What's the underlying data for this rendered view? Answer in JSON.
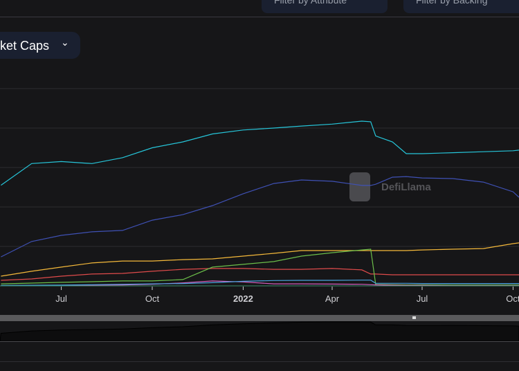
{
  "filters": {
    "attribute_label": "Filter by Attribute",
    "backing_label": "Filter by Backing"
  },
  "chart_selector": {
    "label": "ket Caps",
    "icon": "chevron-down-icon"
  },
  "watermark": {
    "text": "DefiLlama"
  },
  "chart_data": {
    "type": "line",
    "title": "",
    "xlabel": "",
    "ylabel": "",
    "y_units": "billions USD (estimated; y-axis labels not visible)",
    "xlim": [
      "2021-04-30",
      "2022-10-07"
    ],
    "ylim": [
      0,
      100
    ],
    "grid": true,
    "x_ticks": [
      {
        "date": "2021-07-01",
        "label": "Jul"
      },
      {
        "date": "2021-10-01",
        "label": "Oct"
      },
      {
        "date": "2022-01-01",
        "label": "2022"
      },
      {
        "date": "2022-04-01",
        "label": "Apr"
      },
      {
        "date": "2022-07-01",
        "label": "Jul"
      },
      {
        "date": "2022-10-01",
        "label": "Oct"
      }
    ],
    "y_gridlines": [
      20,
      40,
      60,
      80,
      100
    ],
    "x": [
      "2021-05-01",
      "2021-06-01",
      "2021-07-01",
      "2021-08-01",
      "2021-09-01",
      "2021-10-01",
      "2021-11-01",
      "2021-12-01",
      "2022-01-01",
      "2022-02-01",
      "2022-03-01",
      "2022-04-01",
      "2022-05-01",
      "2022-05-10",
      "2022-05-15",
      "2022-06-01",
      "2022-06-15",
      "2022-07-01",
      "2022-08-01",
      "2022-09-01",
      "2022-10-01",
      "2022-10-07"
    ],
    "series": [
      {
        "color": "#26c6da",
        "values": [
          51,
          62,
          63,
          62,
          65,
          70,
          73,
          77,
          79,
          80,
          81,
          82,
          83.5,
          83.2,
          76,
          73,
          67,
          67,
          67.5,
          68,
          68.5,
          68.8
        ]
      },
      {
        "color": "#3f51b5",
        "values": [
          14.7,
          22.5,
          25.6,
          27.4,
          28.1,
          33.3,
          36.1,
          40.7,
          46.7,
          51.9,
          53.7,
          53,
          50.9,
          50.9,
          51.5,
          55.1,
          55.4,
          54.7,
          54.4,
          52.6,
          47.7,
          44.9
        ]
      },
      {
        "color": "#f5b93a",
        "values": [
          4.9,
          7.4,
          9.5,
          11.6,
          12.6,
          12.6,
          13.3,
          13.7,
          15.1,
          16.5,
          17.9,
          17.9,
          17.9,
          17.9,
          17.9,
          17.9,
          17.9,
          18.2,
          18.6,
          18.9,
          21.4,
          21.8
        ]
      },
      {
        "color": "#e04b4b",
        "values": [
          2.8,
          3.5,
          4.9,
          6,
          6.3,
          7.4,
          8.4,
          8.8,
          8.8,
          8.4,
          8.4,
          8.8,
          8.1,
          6,
          6,
          5.6,
          5.6,
          5.6,
          5.6,
          5.6,
          5.6,
          5.6
        ]
      },
      {
        "color": "#6cbf4a",
        "values": [
          1,
          1.4,
          1.8,
          2.1,
          2.5,
          2.5,
          3.2,
          9.5,
          10.9,
          12.3,
          15.1,
          16.8,
          18.2,
          18.6,
          0.7,
          0.6,
          0.5,
          0.5,
          0.4,
          0.4,
          0.4,
          0.4
        ]
      },
      {
        "color": "#d45fc0",
        "values": [
          0.1,
          0.2,
          0.3,
          0.4,
          0.5,
          0.8,
          1.5,
          2.5,
          2.0,
          1.0,
          1.0,
          0.9,
          0.8,
          0.6,
          0.5,
          0.3,
          0.2,
          0.2,
          0.1,
          0.1,
          0.1,
          0.1
        ]
      },
      {
        "color": "#4aa3df",
        "values": [
          0.2,
          0.3,
          0.4,
          0.6,
          0.8,
          1.0,
          1.2,
          1.6,
          2.3,
          2.7,
          2.8,
          2.8,
          2.9,
          2.9,
          1.3,
          1.3,
          1.3,
          1.2,
          1.2,
          1.2,
          1.2,
          1.2
        ]
      }
    ]
  }
}
